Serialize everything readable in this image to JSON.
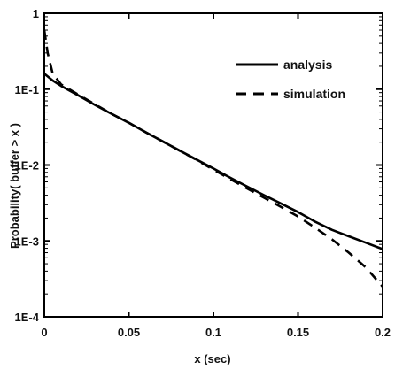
{
  "chart_data": {
    "type": "line",
    "xlabel": "x (sec)",
    "ylabel": "Probability( buffer > x )",
    "xlim": [
      0,
      0.2
    ],
    "ylim": [
      0.0001,
      1
    ],
    "yscale": "log",
    "grid": false,
    "legend_position": "top-right",
    "x_ticks": [
      {
        "value": 0,
        "label": "0"
      },
      {
        "value": 0.05,
        "label": "0.05"
      },
      {
        "value": 0.1,
        "label": "0.1"
      },
      {
        "value": 0.15,
        "label": "0.15"
      },
      {
        "value": 0.2,
        "label": "0.2"
      }
    ],
    "y_ticks": [
      {
        "value": 1,
        "label": "1"
      },
      {
        "value": 0.1,
        "label": "1E-1"
      },
      {
        "value": 0.01,
        "label": "1E-2"
      },
      {
        "value": 0.001,
        "label": "1E-3"
      },
      {
        "value": 0.0001,
        "label": "1E-4"
      }
    ],
    "series": [
      {
        "name": "analysis",
        "style": "solid",
        "color": "#000000",
        "x": [
          0,
          0.005,
          0.01,
          0.02,
          0.03,
          0.04,
          0.05,
          0.06,
          0.07,
          0.08,
          0.09,
          0.1,
          0.11,
          0.12,
          0.13,
          0.14,
          0.15,
          0.16,
          0.17,
          0.18,
          0.19,
          0.2
        ],
        "y": [
          0.16,
          0.13,
          0.11,
          0.083,
          0.062,
          0.047,
          0.036,
          0.027,
          0.0205,
          0.0155,
          0.0118,
          0.009,
          0.0068,
          0.0052,
          0.004,
          0.0031,
          0.0024,
          0.0018,
          0.0014,
          0.00115,
          0.00095,
          0.00078
        ]
      },
      {
        "name": "simulation",
        "style": "dashed",
        "color": "#000000",
        "x": [
          0,
          0.002,
          0.005,
          0.01,
          0.02,
          0.03,
          0.04,
          0.05,
          0.06,
          0.07,
          0.08,
          0.09,
          0.1,
          0.11,
          0.12,
          0.13,
          0.14,
          0.15,
          0.16,
          0.17,
          0.18,
          0.19,
          0.2
        ],
        "y": [
          0.6,
          0.3,
          0.16,
          0.115,
          0.085,
          0.063,
          0.047,
          0.036,
          0.027,
          0.0205,
          0.0155,
          0.0117,
          0.0087,
          0.0065,
          0.0049,
          0.0037,
          0.0028,
          0.0021,
          0.0015,
          0.00105,
          0.0007,
          0.00045,
          0.00025
        ]
      }
    ]
  }
}
